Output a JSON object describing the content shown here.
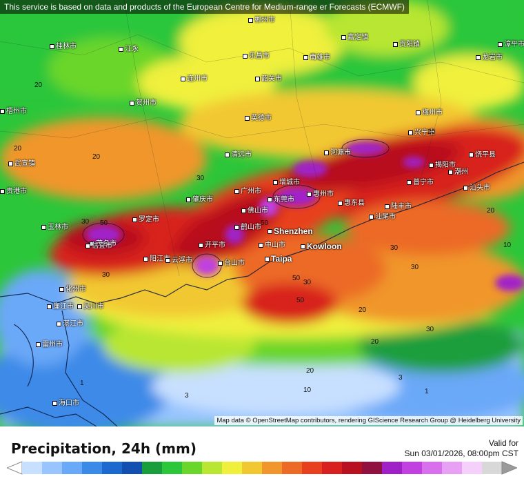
{
  "disclaimer": "This service is based on data and products of the European Centre for Medium-range        er Forecasts (ECMWF)",
  "attribution": "Map data © OpenStreetMap contributors, rendering GIScience Research Group @ Heidelberg University",
  "legend": {
    "title": "Precipitation, 24h (mm)",
    "valid_label": "Valid for",
    "valid_time": "Sun 03/01/2026, 08:00pm CST",
    "colors": [
      "#c8e0ff",
      "#98c4ff",
      "#6aa8f8",
      "#3c8ae8",
      "#1c6ad0",
      "#134fb0",
      "#1a9e3c",
      "#2cc63a",
      "#6ad62c",
      "#b8e632",
      "#f0f03c",
      "#f2c832",
      "#f0962c",
      "#ec6a26",
      "#e8401e",
      "#d8201e",
      "#b8101e",
      "#901040",
      "#a020c8",
      "#c040e0",
      "#d870ee",
      "#e8a0f4",
      "#f4d0fa",
      "#d8d8d8"
    ]
  },
  "cities": [
    {
      "name": "桂林市"
    },
    {
      "name": "江永"
    },
    {
      "name": "郴州市"
    },
    {
      "name": "嘉定镇"
    },
    {
      "name": "贡阳镇"
    },
    {
      "name": "漳平市"
    },
    {
      "name": "贺州市"
    },
    {
      "name": "连州市"
    },
    {
      "name": "乐昌市"
    },
    {
      "name": "南雄市"
    },
    {
      "name": "龙岩市"
    },
    {
      "name": "梧州市"
    },
    {
      "name": "英德市"
    },
    {
      "name": "河源市"
    },
    {
      "name": "揭阳市"
    },
    {
      "name": "饶平县"
    },
    {
      "name": "广州市"
    },
    {
      "name": "东莞市"
    },
    {
      "name": "惠州市"
    },
    {
      "name": "汕头市"
    },
    {
      "name": "佛山市"
    },
    {
      "name": "肇庆市"
    },
    {
      "name": "Shenzhen"
    },
    {
      "name": "Kowloon"
    },
    {
      "name": "中山市"
    },
    {
      "name": "Taipa"
    },
    {
      "name": "开平市"
    },
    {
      "name": "台山市"
    },
    {
      "name": "阳江市"
    },
    {
      "name": "茂名市"
    },
    {
      "name": "湛江市"
    },
    {
      "name": "雷州市"
    },
    {
      "name": "海口市"
    },
    {
      "name": "玉林市"
    },
    {
      "name": "信宜市"
    },
    {
      "name": "罗定市"
    },
    {
      "name": "陆丰市"
    },
    {
      "name": "汕尾市"
    },
    {
      "name": "惠东县"
    },
    {
      "name": "增城市"
    },
    {
      "name": "清远市"
    },
    {
      "name": "韶关市"
    },
    {
      "name": "梅州市"
    },
    {
      "name": "兴宁市"
    },
    {
      "name": "普宁市"
    },
    {
      "name": "潮州"
    },
    {
      "name": "化州市"
    },
    {
      "name": "廉江市"
    },
    {
      "name": "吴川市"
    },
    {
      "name": "鹤山市"
    },
    {
      "name": "云浮市"
    },
    {
      "name": "武宣镇"
    },
    {
      "name": "贵港市"
    }
  ],
  "contour_labels": [
    "20",
    "20",
    "20",
    "30",
    "50",
    "30",
    "50",
    "30",
    "20",
    "10",
    "1",
    "3",
    "20",
    "30",
    "50",
    "30",
    "20",
    "10",
    "20",
    "30",
    "50",
    "30",
    "20",
    "3",
    "1"
  ]
}
